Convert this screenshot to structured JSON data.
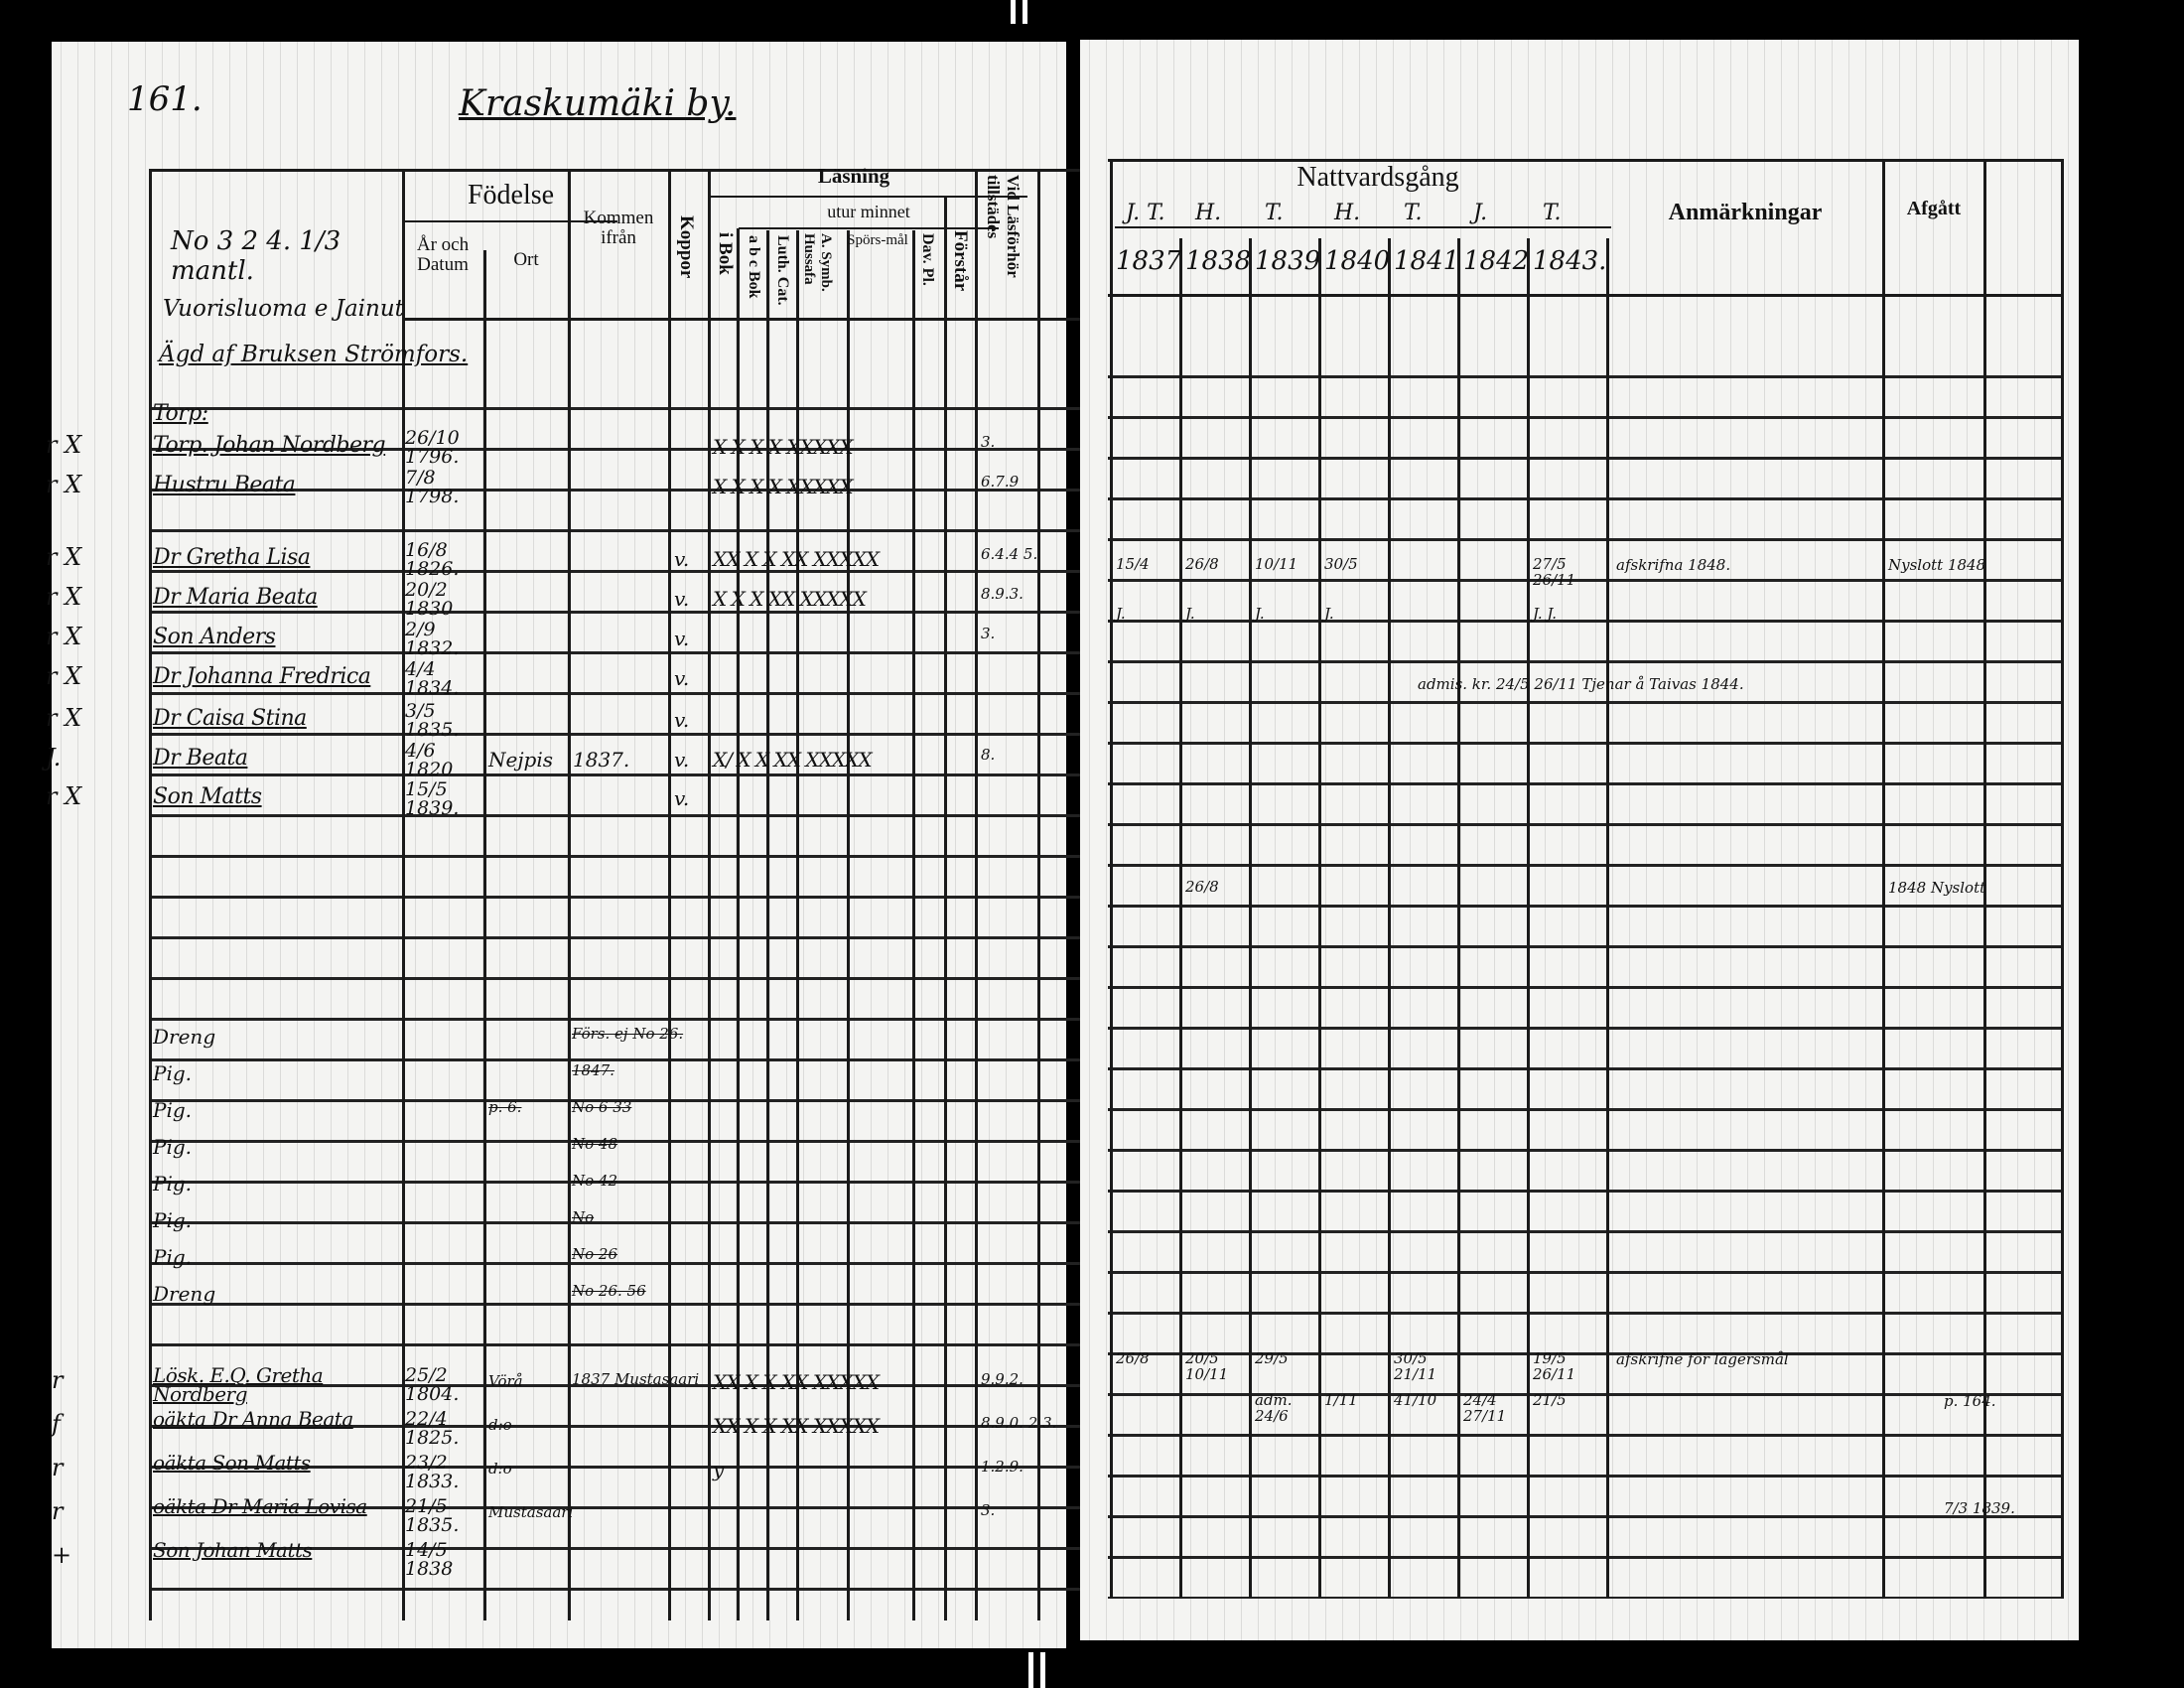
{
  "left_page": {
    "page_number": "161.",
    "village_title": "Kraskumäki by.",
    "headers": {
      "fodelse": "Födelse",
      "ar_och_datum": "År och Datum",
      "ort": "Ort",
      "kommen_ifran": "Kommen ifrån",
      "koppor": "Koppor",
      "lasning": "Läsning",
      "i_bok": "i Bok",
      "utur_minnet": "utur minnet",
      "abc_bok": "a b c Bok",
      "luth_cat": "Luth. Cat.",
      "a_symb": "A. Symb. Hussafa",
      "sporsmal": "Spörs-mål",
      "dav_pl": "Dav. Pl.",
      "forstar": "Förstår",
      "vid_lasforhor": "Vid Läsförhör tillstädes"
    },
    "homestead": {
      "number": "No 3 2 4. 1/3 mantl.",
      "line2": "Vuorisluoma e Jainut",
      "line3": "Ägd af Bruksen Strömfors."
    },
    "entries": [
      {
        "name": "Torp:",
        "date": "",
        "ort": "",
        "kommen": "",
        "koppor": "",
        "reading": "",
        "forhor": "",
        "margin": ""
      },
      {
        "name": "Torp. Johan Nordberg",
        "date": "26/10 1796.",
        "ort": "",
        "kommen": "",
        "koppor": "",
        "reading": "X   X   X   X   XXXXX",
        "forhor": "3.",
        "margin": "r X"
      },
      {
        "name": "Hustru Beata",
        "date": "7/8 1798.",
        "ort": "",
        "kommen": "",
        "koppor": "",
        "reading": "X   X   X   X   XXXXX",
        "forhor": "6.7.9",
        "margin": "r X"
      },
      {
        "name": "Dr Gretha Lisa",
        "date": "16/8 1826.",
        "ort": "",
        "kommen": "",
        "koppor": "v.",
        "reading": "XX  X   X   XX  XXXXX",
        "forhor": "6.4.4 5.",
        "margin": "r X"
      },
      {
        "name": "Dr Maria Beata",
        "date": "20/2 1830",
        "ort": "",
        "kommen": "",
        "koppor": "v.",
        "reading": "X   X   X   XX  XXXXX",
        "forhor": "8.9.3.",
        "margin": "r X"
      },
      {
        "name": "Son Anders",
        "date": "2/9 1832.",
        "ort": "",
        "kommen": "",
        "koppor": "v.",
        "reading": "",
        "forhor": "3.",
        "margin": "r X"
      },
      {
        "name": "Dr Johanna Fredrica",
        "date": "4/4 1834.",
        "ort": "",
        "kommen": "",
        "koppor": "v.",
        "reading": "",
        "forhor": "",
        "margin": "r X"
      },
      {
        "name": "Dr Caisa Stina",
        "date": "3/5 1835.",
        "ort": "",
        "kommen": "",
        "koppor": "v.",
        "reading": "",
        "forhor": "",
        "margin": "r X"
      },
      {
        "name": "Dr Beata",
        "date": "4/6 1820",
        "ort": "Nejpis",
        "kommen": "1837.",
        "koppor": "v.",
        "reading": "X/  X   X   XX  XXXXX",
        "forhor": "8.",
        "margin": "J."
      },
      {
        "name": "Son Matts",
        "date": "15/5 1839.",
        "ort": "",
        "kommen": "",
        "koppor": "v.",
        "reading": "",
        "forhor": "",
        "margin": "r X"
      }
    ],
    "servants": [
      {
        "name": "Dreng",
        "kommen": "Förs. ej No 26.",
        "ort": ""
      },
      {
        "name": "Pig.",
        "kommen": "1847.",
        "ort": ""
      },
      {
        "name": "Pig.",
        "kommen": "No 6 33",
        "ort": "p. 6."
      },
      {
        "name": "Pig.",
        "kommen": "No 48",
        "ort": ""
      },
      {
        "name": "Pig.",
        "kommen": "No 42",
        "ort": ""
      },
      {
        "name": "Pig.",
        "kommen": "No",
        "ort": ""
      },
      {
        "name": "Pig.",
        "kommen": "No 26",
        "ort": ""
      },
      {
        "name": "Dreng",
        "kommen": "No 26. 56",
        "ort": ""
      }
    ],
    "lower_entries": [
      {
        "name": "Lösk. E.Q. Gretha Nordberg",
        "date": "25/2 1804.",
        "ort": "Vörå",
        "kommen": "1837 Mustasaari",
        "reading": "XX  X   X   XX  XXXXX",
        "forhor": "9.9.2.",
        "margin": "r"
      },
      {
        "name": "oäkta Dr Anna Beata",
        "date": "22/4 1825.",
        "ort": "d:o",
        "kommen": "",
        "reading": "XX  X   X   XX  XXXXX",
        "forhor": "8.9.0. 2.3.",
        "margin": "f"
      },
      {
        "name": "oäkta Son Matts",
        "date": "23/2 1833.",
        "ort": "d:o",
        "kommen": "",
        "reading": "y",
        "forhor": "1.2.9.",
        "margin": "r"
      },
      {
        "name": "oäkta Dr Maria Lovisa",
        "date": "21/5 1835.",
        "ort": "Mustasaari",
        "kommen": "",
        "reading": "",
        "forhor": "3.",
        "margin": "r"
      },
      {
        "name": "Son Johan Matts",
        "date": "14/5 1838",
        "ort": "",
        "kommen": "",
        "reading": "",
        "forhor": "",
        "margin": "+"
      }
    ]
  },
  "right_page": {
    "headers": {
      "nattvardsgang": "Nattvardsgång",
      "session_marks": [
        "J. T.",
        "H.",
        "T.",
        "H.",
        "T.",
        "J.",
        "T."
      ],
      "years": [
        "1837",
        "1838",
        "1839",
        "1840",
        "1841",
        "1842",
        "1843."
      ],
      "anmarkningar": "Anmärkningar",
      "afgatt": "Afgått"
    },
    "rows": [
      {
        "cells": [
          "15/4",
          "26/8",
          "10/11",
          "30/5",
          "",
          "",
          "27/5  26/11"
        ],
        "remark": "afskrifna 1848.",
        "afgatt": "Nyslott 1848"
      },
      {
        "cells": [
          "J.",
          "J.",
          "J.",
          "J.",
          "",
          "",
          "J.  J."
        ],
        "remark": "",
        "afgatt": ""
      },
      {
        "cells": [
          "",
          "",
          "",
          "",
          "",
          "",
          ""
        ],
        "remark": "admis. kr. 24/5 26/11  Tjenar å Taivas 1844.",
        "afgatt": ""
      },
      {
        "cells": [
          "",
          "26/8",
          "",
          "",
          "",
          "",
          ""
        ],
        "remark": "",
        "afgatt": "1848 Nyslott"
      }
    ],
    "lower_rows": [
      {
        "cells": [
          "26/8",
          "20/5  10/11",
          "29/5",
          "",
          "30/5  21/11",
          "",
          "19/5  26/11"
        ],
        "remark": "afskrifne för lägersmål",
        "afgatt": ""
      },
      {
        "cells": [
          "",
          "",
          "adm. 24/6",
          "1/11",
          "41/10",
          "24/4  27/11",
          "21/5"
        ],
        "remark": "",
        "afgatt": "p. 164."
      },
      {
        "cells": [
          "",
          "",
          "",
          "",
          "",
          "",
          ""
        ],
        "remark": "",
        "afgatt": "7/3 1839."
      }
    ]
  }
}
